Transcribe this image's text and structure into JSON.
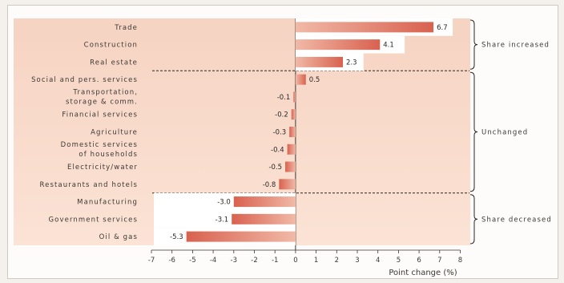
{
  "chart_data": {
    "type": "bar",
    "orientation": "horizontal",
    "xlabel": "Point change (%)",
    "xlim": [
      -7,
      8
    ],
    "xticks": [
      "-7",
      "-6",
      "-5",
      "-4",
      "-3",
      "-2",
      "-1",
      "0",
      "1",
      "2",
      "3",
      "4",
      "5",
      "6",
      "7",
      "8"
    ],
    "categories": [
      [
        "Trade"
      ],
      [
        "Construction"
      ],
      [
        "Real estate"
      ],
      [
        "Social and pers. services"
      ],
      [
        "Transportation,",
        "storage & comm."
      ],
      [
        "Financial services"
      ],
      [
        "Agriculture"
      ],
      [
        "Domestic services",
        "of households"
      ],
      [
        "Electricity/water"
      ],
      [
        "Restaurants and hotels"
      ],
      [
        "Manufacturing"
      ],
      [
        "Government services"
      ],
      [
        "Oil & gas"
      ]
    ],
    "values": [
      6.7,
      4.1,
      2.3,
      0.5,
      -0.1,
      -0.2,
      -0.3,
      -0.4,
      -0.5,
      -0.8,
      -3.0,
      -3.1,
      -5.3
    ],
    "value_labels": [
      "6.7",
      "4.1",
      "2.3",
      "0.5",
      "-0.1",
      "-0.2",
      "-0.3",
      "-0.4",
      "-0.5",
      "-0.8",
      "-3.0",
      "-3.1",
      "-5.3"
    ],
    "groups": [
      {
        "label": "Share increased",
        "start": 0,
        "end": 2
      },
      {
        "label": "Unchanged",
        "start": 3,
        "end": 9
      },
      {
        "label": "Share decreased",
        "start": 10,
        "end": 12
      }
    ],
    "colors": {
      "bar_dark": "#d9614f",
      "bar_light": "#f1b9a7",
      "band_top": "#f6d3c2",
      "band_bottom": "#fbe3d5"
    }
  }
}
